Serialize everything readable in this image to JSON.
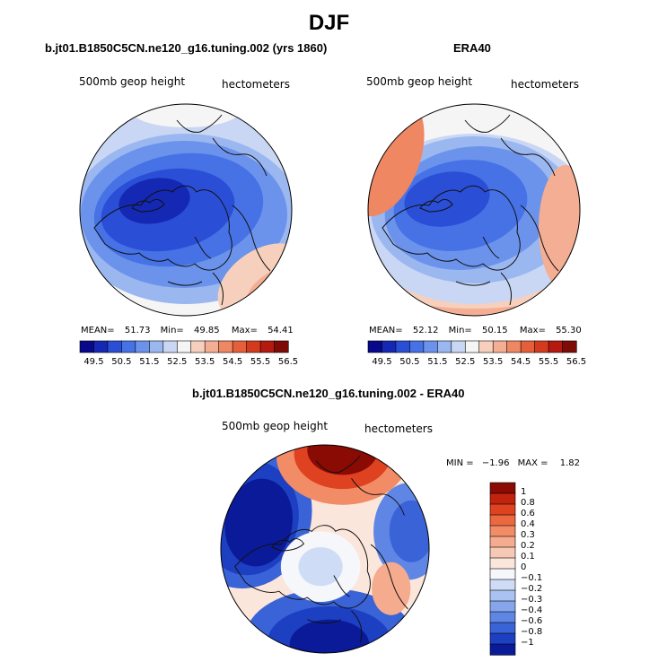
{
  "page": {
    "title": "DJF"
  },
  "panels": [
    {
      "title": "b.jt01.B1850C5CN.ne120_g16.tuning.002 (yrs 1860)",
      "field_label": "500mb geop height",
      "units_label": "hectometers",
      "stats": {
        "mean_label": "MEAN=",
        "mean": "51.73",
        "min_label": "Min=",
        "min": "49.85",
        "max_label": "Max=",
        "max": "54.41"
      }
    },
    {
      "title": "ERA40",
      "field_label": "500mb geop height",
      "units_label": "hectometers",
      "stats": {
        "mean_label": "MEAN=",
        "mean": "52.12",
        "min_label": "Min=",
        "min": "50.15",
        "max_label": "Max=",
        "max": "55.30"
      }
    }
  ],
  "abs_colorbar": {
    "tick_labels": [
      "49.5",
      "50.5",
      "51.5",
      "52.5",
      "53.5",
      "54.5",
      "55.5",
      "56.5"
    ],
    "colors": [
      "#08088a",
      "#1428b4",
      "#2a4fd6",
      "#4672e6",
      "#6c93ec",
      "#9bb7f0",
      "#c9d7f4",
      "#f5f5f5",
      "#f7d0bd",
      "#f4ae93",
      "#ee8762",
      "#e5603a",
      "#d43b1d",
      "#b41a10",
      "#7e0c06"
    ]
  },
  "diff_panel": {
    "title": "b.jt01.B1850C5CN.ne120_g16.tuning.002 - ERA40",
    "field_label": "500mb geop height",
    "units_label": "hectometers",
    "stats": {
      "min_label": "MIN =",
      "min": "−1.96",
      "max_label": "MAX =",
      "max": "1.82"
    }
  },
  "diff_colorbar": {
    "tick_labels": [
      "1",
      "0.8",
      "0.6",
      "0.4",
      "0.3",
      "0.2",
      "0.1",
      "0",
      "−0.1",
      "−0.2",
      "−0.3",
      "−0.4",
      "−0.6",
      "−0.8",
      "−1"
    ],
    "colors": [
      "#8a0a04",
      "#c2230f",
      "#de4220",
      "#ec6840",
      "#f28c66",
      "#f5ab8e",
      "#f7c9b5",
      "#fbe6dc",
      "#f5f7fb",
      "#cfdcf6",
      "#aac2f1",
      "#86a6ec",
      "#5f86e4",
      "#3a63d8",
      "#1d3fc2",
      "#0a1a98"
    ]
  },
  "colors": {
    "map_outline": "#000000",
    "coast": "#111111"
  }
}
